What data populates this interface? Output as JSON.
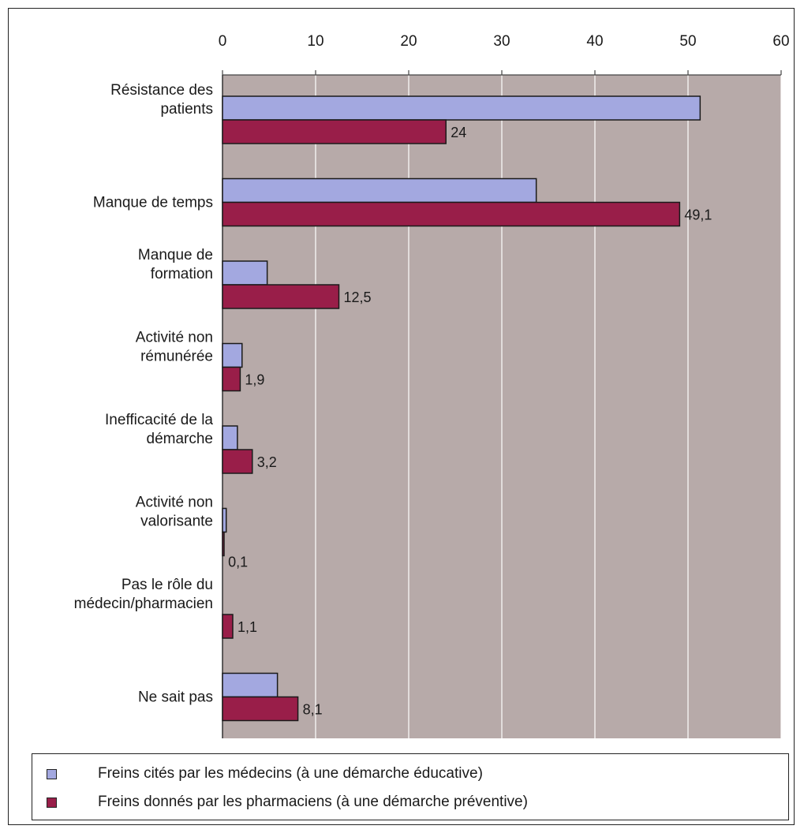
{
  "colors": {
    "plot_background": "#b7aaa9",
    "medecins": "#a3a8e0",
    "pharmaciens": "#991e49",
    "gridline": "#ffffff",
    "bar_outline": "#1a1a1a"
  },
  "chart_data": {
    "type": "bar",
    "orientation": "horizontal",
    "xlim": [
      0,
      60
    ],
    "xticks": [
      0,
      10,
      20,
      30,
      40,
      50,
      60
    ],
    "xtick_position": "top",
    "grid": "vertical",
    "legend_position": "bottom",
    "categories": [
      [
        "Résistance des",
        "patients"
      ],
      [
        "Manque de temps"
      ],
      [
        "Manque de",
        "formation"
      ],
      [
        "Activité non",
        "rémunérée"
      ],
      [
        "Inefficacité de la",
        "démarche"
      ],
      [
        "Activité non",
        "valorisante"
      ],
      [
        "Pas le rôle du",
        "médecin/pharmacien"
      ],
      [
        "Ne sait pas"
      ]
    ],
    "series": [
      {
        "name": "Freins cités par les médecins (à une démarche éducative)",
        "values": [
          51.3,
          33.7,
          4.8,
          2.1,
          1.6,
          0.4,
          0,
          5.9
        ],
        "labels": [
          "",
          "",
          "",
          "",
          "",
          "",
          "",
          ""
        ]
      },
      {
        "name": "Freins donnés par les pharmaciens (à une démarche préventive)",
        "values": [
          24,
          49.1,
          12.5,
          1.9,
          3.2,
          0.1,
          1.1,
          8.1
        ],
        "labels": [
          "24",
          "49,1",
          "12,5",
          "1,9",
          "3,2",
          "0,1",
          "1,1",
          "8,1"
        ]
      }
    ]
  },
  "legend": {
    "items": [
      "Freins cités par les médecins (à une démarche éducative)",
      "Freins donnés par les pharmaciens (à une démarche préventive)"
    ]
  }
}
